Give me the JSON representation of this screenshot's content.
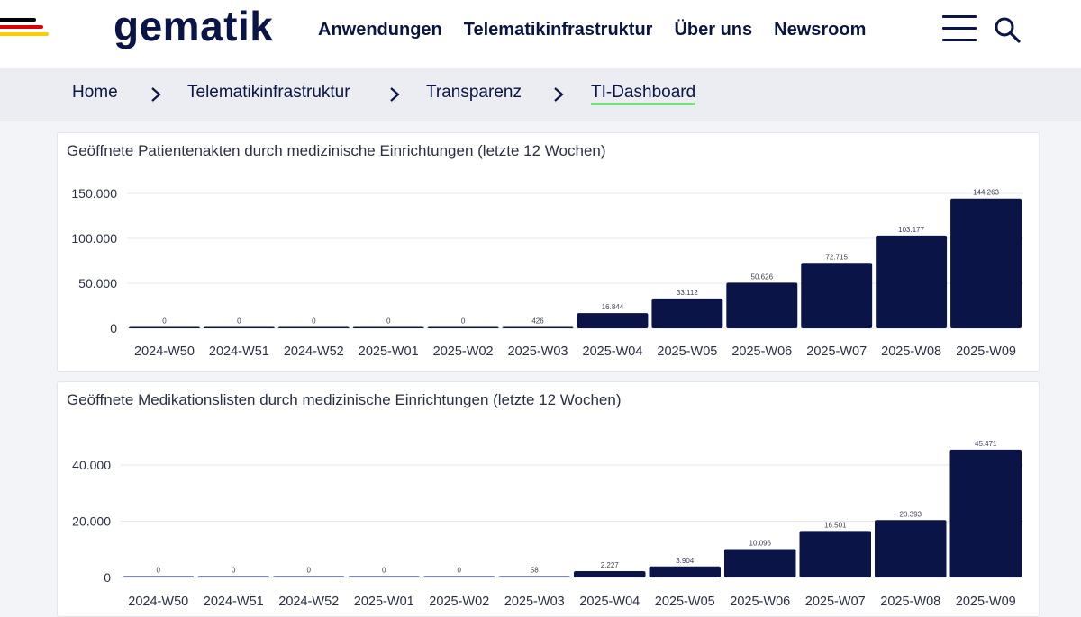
{
  "header": {
    "logo": "gematik",
    "nav": [
      "Anwendungen",
      "Telematikinfrastruktur",
      "Über uns",
      "Newsroom"
    ],
    "flag_colors": [
      "#000000",
      "#dd0000",
      "#ffcc00"
    ]
  },
  "breadcrumb": [
    "Home",
    "Telematikinfrastruktur",
    "Transparenz",
    "TI-Dashboard"
  ],
  "colors": {
    "bar": "#0b1446",
    "accent_underline": "#7be07b"
  },
  "chart_data": [
    {
      "type": "bar",
      "title": "Geöffnete Patientenakten durch medizinische Einrichtungen (letzte 12 Wochen)",
      "categories": [
        "2024-W50",
        "2024-W51",
        "2024-W52",
        "2025-W01",
        "2025-W02",
        "2025-W03",
        "2025-W04",
        "2025-W05",
        "2025-W06",
        "2025-W07",
        "2025-W08",
        "2025-W09"
      ],
      "values": [
        0,
        0,
        0,
        0,
        0,
        426,
        16844,
        33112,
        50626,
        72715,
        103177,
        144263
      ],
      "labels": [
        "0",
        "0",
        "0",
        "0",
        "0",
        "426",
        "16.844",
        "33.112",
        "50.626",
        "72.715",
        "103.177",
        "144.263"
      ],
      "yticks": [
        0,
        50000,
        100000,
        150000
      ],
      "ytick_labels": [
        "0",
        "50.000",
        "100.000",
        "150.000"
      ],
      "ylim": [
        0,
        150000
      ],
      "grid": true
    },
    {
      "type": "bar",
      "title": "Geöffnete Medikationslisten durch medizinische Einrichtungen (letzte 12 Wochen)",
      "categories": [
        "2024-W50",
        "2024-W51",
        "2024-W52",
        "2025-W01",
        "2025-W02",
        "2025-W03",
        "2025-W04",
        "2025-W05",
        "2025-W06",
        "2025-W07",
        "2025-W08",
        "2025-W09"
      ],
      "values": [
        0,
        0,
        0,
        0,
        0,
        58,
        2227,
        3904,
        10096,
        16501,
        20393,
        45471
      ],
      "labels": [
        "0",
        "0",
        "0",
        "0",
        "0",
        "58",
        "2.227",
        "3.904",
        "10.096",
        "16.501",
        "20.393",
        "45.471"
      ],
      "yticks": [
        0,
        20000,
        40000
      ],
      "ytick_labels": [
        "0",
        "20.000",
        "40.000"
      ],
      "ylim": [
        0,
        40000
      ],
      "grid": true
    }
  ]
}
